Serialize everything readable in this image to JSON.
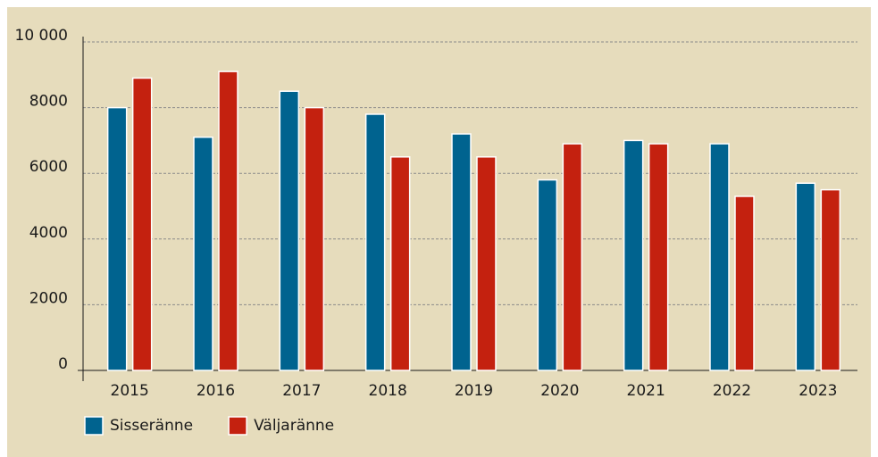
{
  "chart_data": {
    "type": "bar",
    "categories": [
      "2015",
      "2016",
      "2017",
      "2018",
      "2019",
      "2020",
      "2021",
      "2022",
      "2023"
    ],
    "series": [
      {
        "name": "Sisseränne",
        "color": "#00638f",
        "values": [
          8000,
          7100,
          8500,
          7800,
          7200,
          5800,
          7000,
          6900,
          5700
        ]
      },
      {
        "name": "Väljaränne",
        "color": "#c4210f",
        "values": [
          8900,
          9100,
          8000,
          6500,
          6500,
          6900,
          6900,
          5300,
          5500
        ]
      }
    ],
    "ylim": [
      0,
      10000
    ],
    "yticks": [
      0,
      2000,
      4000,
      6000,
      8000,
      {
        "value": 10000,
        "label": "10 000"
      }
    ],
    "grid": true,
    "legend": "bottom"
  }
}
